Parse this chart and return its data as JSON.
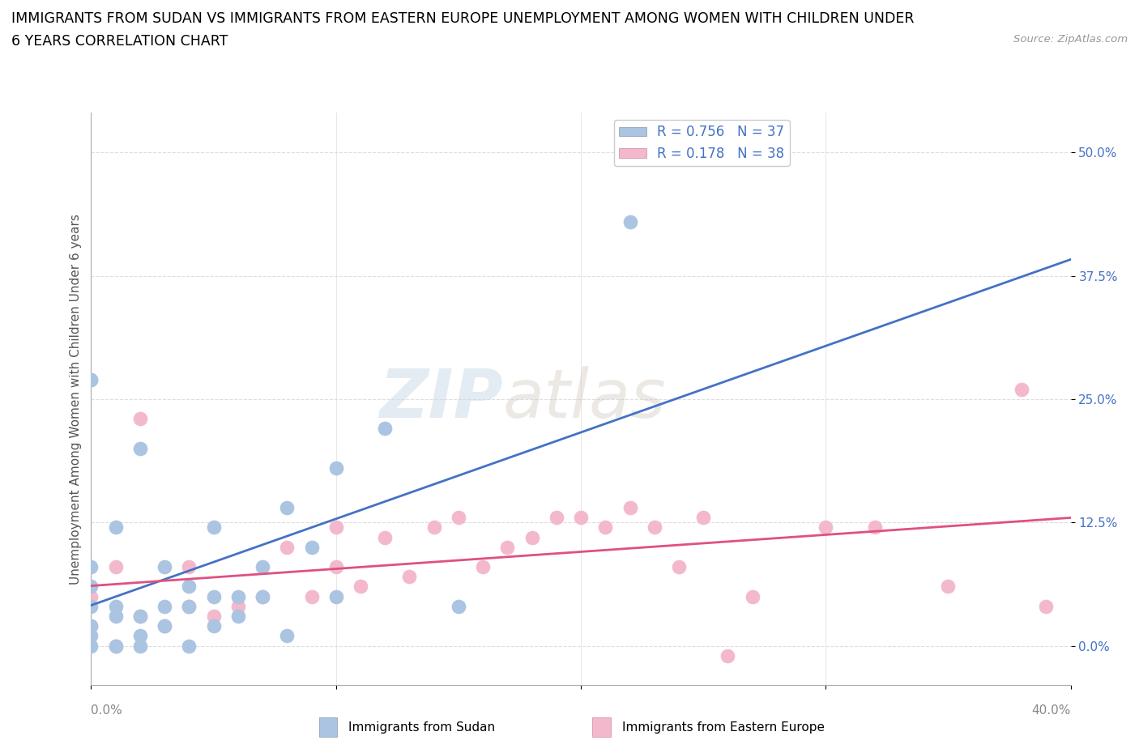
{
  "title_line1": "IMMIGRANTS FROM SUDAN VS IMMIGRANTS FROM EASTERN EUROPE UNEMPLOYMENT AMONG WOMEN WITH CHILDREN UNDER",
  "title_line2": "6 YEARS CORRELATION CHART",
  "source": "Source: ZipAtlas.com",
  "xlim": [
    0.0,
    0.4
  ],
  "ylim": [
    -0.04,
    0.54
  ],
  "ylabel": "Unemployment Among Women with Children Under 6 years",
  "watermark_zip": "ZIP",
  "watermark_atlas": "atlas",
  "sudan_color": "#aac4e2",
  "eastern_color": "#f4b8cc",
  "sudan_line_color": "#4472c4",
  "eastern_line_color": "#e05080",
  "ytick_color": "#4472c4",
  "xtick_color": "#888888",
  "R_sudan": 0.756,
  "N_sudan": 37,
  "R_eastern": 0.178,
  "N_eastern": 38,
  "sudan_label": "Immigrants from Sudan",
  "eastern_label": "Immigrants from Eastern Europe",
  "sudan_scatter_x": [
    0.0,
    0.0,
    0.0,
    0.0,
    0.0,
    0.0,
    0.0,
    0.0,
    0.01,
    0.01,
    0.01,
    0.01,
    0.02,
    0.02,
    0.02,
    0.02,
    0.03,
    0.03,
    0.03,
    0.04,
    0.04,
    0.04,
    0.05,
    0.05,
    0.05,
    0.06,
    0.06,
    0.07,
    0.07,
    0.08,
    0.08,
    0.09,
    0.1,
    0.1,
    0.12,
    0.15,
    0.22
  ],
  "sudan_scatter_y": [
    0.0,
    0.01,
    0.02,
    0.04,
    0.06,
    0.08,
    0.27,
    0.27,
    0.0,
    0.03,
    0.04,
    0.12,
    0.0,
    0.01,
    0.03,
    0.2,
    0.02,
    0.04,
    0.08,
    0.0,
    0.04,
    0.06,
    0.02,
    0.05,
    0.12,
    0.03,
    0.05,
    0.05,
    0.08,
    0.01,
    0.14,
    0.1,
    0.05,
    0.18,
    0.22,
    0.04,
    0.43
  ],
  "eastern_scatter_x": [
    0.0,
    0.0,
    0.01,
    0.01,
    0.02,
    0.02,
    0.03,
    0.04,
    0.04,
    0.05,
    0.06,
    0.07,
    0.08,
    0.09,
    0.1,
    0.1,
    0.11,
    0.12,
    0.13,
    0.14,
    0.15,
    0.16,
    0.17,
    0.18,
    0.19,
    0.2,
    0.21,
    0.22,
    0.23,
    0.24,
    0.25,
    0.26,
    0.27,
    0.3,
    0.32,
    0.35,
    0.38,
    0.39
  ],
  "eastern_scatter_y": [
    0.02,
    0.05,
    0.0,
    0.08,
    0.03,
    0.23,
    0.02,
    0.04,
    0.08,
    0.03,
    0.04,
    0.05,
    0.1,
    0.05,
    0.12,
    0.08,
    0.06,
    0.11,
    0.07,
    0.12,
    0.13,
    0.08,
    0.1,
    0.11,
    0.13,
    0.13,
    0.12,
    0.14,
    0.12,
    0.08,
    0.13,
    -0.01,
    0.05,
    0.12,
    0.12,
    0.06,
    0.26,
    0.04
  ],
  "background_color": "#ffffff",
  "grid_color": "#dddddd"
}
